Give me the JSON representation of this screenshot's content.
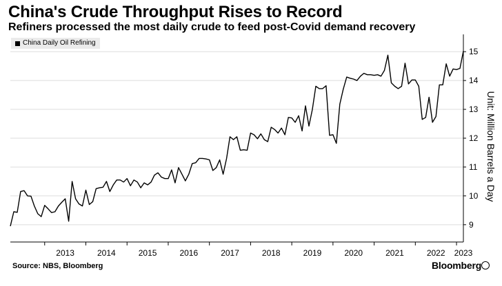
{
  "header": {
    "title": "China's Crude Throughput Rises to Record",
    "subtitle": "Refiners processed the most daily crude to feed post-Covid demand recovery"
  },
  "footer": {
    "source": "Source: NBS, Bloomberg",
    "brand": "Bloomberg"
  },
  "colors": {
    "line": "#000000",
    "grid": "#dcdcdc",
    "legend_bg": "#ebebeb",
    "text": "#000000"
  },
  "chart_data": {
    "type": "line",
    "title": "China's Crude Throughput Rises to Record",
    "subtitle": "Refiners processed the most daily crude to feed post-Covid demand recovery",
    "xlabel": "",
    "ylabel": "Unit: Million Barrels a Day",
    "legend": {
      "entries": [
        "China Daily Oil Refining"
      ],
      "placement": "top-left"
    },
    "grid": {
      "horizontal": true,
      "vertical": false
    },
    "ylim": [
      8.4,
      15.6
    ],
    "yticks": [
      9,
      10,
      11,
      12,
      13,
      14,
      15
    ],
    "xlim": [
      "2012-03",
      "2023-03"
    ],
    "xticks": [
      "2013",
      "2014",
      "2015",
      "2016",
      "2017",
      "2018",
      "2019",
      "2020",
      "2021",
      "2022",
      "2023"
    ],
    "series": [
      {
        "name": "China Daily Oil Refining",
        "x": [
          "2012-03",
          "2012-04",
          "2012-05",
          "2012-06",
          "2012-07",
          "2012-08",
          "2012-09",
          "2012-10",
          "2012-11",
          "2012-12",
          "2013-01",
          "2013-02",
          "2013-03",
          "2013-04",
          "2013-05",
          "2013-06",
          "2013-07",
          "2013-08",
          "2013-09",
          "2013-10",
          "2013-11",
          "2013-12",
          "2014-01",
          "2014-02",
          "2014-03",
          "2014-04",
          "2014-05",
          "2014-06",
          "2014-07",
          "2014-08",
          "2014-09",
          "2014-10",
          "2014-11",
          "2014-12",
          "2015-01",
          "2015-02",
          "2015-03",
          "2015-04",
          "2015-05",
          "2015-06",
          "2015-07",
          "2015-08",
          "2015-09",
          "2015-10",
          "2015-11",
          "2015-12",
          "2016-01",
          "2016-02",
          "2016-03",
          "2016-04",
          "2016-05",
          "2016-06",
          "2016-07",
          "2016-08",
          "2016-09",
          "2016-10",
          "2016-11",
          "2016-12",
          "2017-01",
          "2017-02",
          "2017-03",
          "2017-04",
          "2017-05",
          "2017-06",
          "2017-07",
          "2017-08",
          "2017-09",
          "2017-10",
          "2017-11",
          "2017-12",
          "2018-01",
          "2018-02",
          "2018-03",
          "2018-04",
          "2018-05",
          "2018-06",
          "2018-07",
          "2018-08",
          "2018-09",
          "2018-10",
          "2018-11",
          "2018-12",
          "2019-01",
          "2019-02",
          "2019-03",
          "2019-04",
          "2019-05",
          "2019-06",
          "2019-07",
          "2019-08",
          "2019-09",
          "2019-10",
          "2019-11",
          "2019-12",
          "2020-01",
          "2020-02",
          "2020-03",
          "2020-04",
          "2020-05",
          "2020-06",
          "2020-07",
          "2020-08",
          "2020-09",
          "2020-10",
          "2020-11",
          "2020-12",
          "2021-01",
          "2021-02",
          "2021-03",
          "2021-04",
          "2021-05",
          "2021-06",
          "2021-07",
          "2021-08",
          "2021-09",
          "2021-10",
          "2021-11",
          "2021-12",
          "2022-01",
          "2022-02",
          "2022-03",
          "2022-04",
          "2022-05",
          "2022-06",
          "2022-07",
          "2022-08",
          "2022-09",
          "2022-10",
          "2022-11",
          "2022-12",
          "2023-01",
          "2023-02",
          "2023-03"
        ],
        "values": [
          8.95,
          9.45,
          9.43,
          10.15,
          10.18,
          10.0,
          9.99,
          9.65,
          9.38,
          9.28,
          9.67,
          9.55,
          9.42,
          9.45,
          9.65,
          9.78,
          9.9,
          9.12,
          10.5,
          9.9,
          9.72,
          9.65,
          10.2,
          9.7,
          9.8,
          10.25,
          10.28,
          10.3,
          10.5,
          10.15,
          10.38,
          10.55,
          10.55,
          10.48,
          10.6,
          10.35,
          10.55,
          10.48,
          10.28,
          10.45,
          10.38,
          10.48,
          10.72,
          10.8,
          10.65,
          10.6,
          10.6,
          10.9,
          10.45,
          10.98,
          10.75,
          10.52,
          10.75,
          11.12,
          11.15,
          11.3,
          11.3,
          11.28,
          11.25,
          10.88,
          10.98,
          11.25,
          10.75,
          11.3,
          12.05,
          11.95,
          12.05,
          11.58,
          11.6,
          11.58,
          12.18,
          12.12,
          11.98,
          12.15,
          11.95,
          11.88,
          12.38,
          12.3,
          12.18,
          12.35,
          12.12,
          12.72,
          12.7,
          12.55,
          12.78,
          12.25,
          13.12,
          12.42,
          13.0,
          13.8,
          13.72,
          13.72,
          13.82,
          12.1,
          12.12,
          11.82,
          13.18,
          13.7,
          14.12,
          14.08,
          14.05,
          14.0,
          14.15,
          14.25,
          14.2,
          14.2,
          14.18,
          14.2,
          14.15,
          14.35,
          14.88,
          13.92,
          13.8,
          13.72,
          13.8,
          14.6,
          13.88,
          14.02,
          14.02,
          13.8,
          12.65,
          12.72,
          13.42,
          12.55,
          12.75,
          13.85,
          13.85,
          14.58,
          14.15,
          14.4,
          14.38,
          14.42,
          15.02
        ]
      }
    ]
  }
}
